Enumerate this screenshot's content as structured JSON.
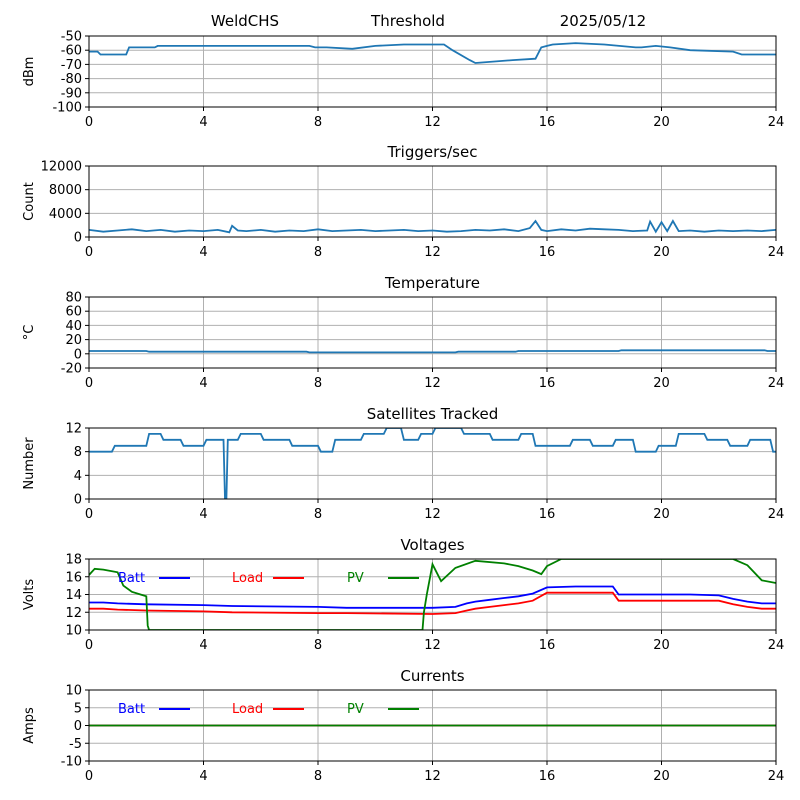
{
  "header": {
    "left": "WeldCHS",
    "center": "Threshold",
    "right": "2025/05/12"
  },
  "colors": {
    "series": "#1f77b4",
    "grid": "#b0b0b0",
    "batt": "#0000ff",
    "load": "#ff0000",
    "pv": "#008000"
  },
  "chart_data": [
    {
      "type": "line",
      "title": "",
      "ylabel": "dBm",
      "xlim": [
        0,
        24
      ],
      "ylim": [
        -100,
        -50
      ],
      "xticks": [
        "0",
        "4",
        "8",
        "12",
        "16",
        "20",
        "24"
      ],
      "yticks": [
        "-50",
        "-60",
        "-70",
        "-80",
        "-90",
        "-100"
      ],
      "grid": true,
      "series": [
        {
          "x": [
            0,
            0.3,
            0.4,
            1.3,
            1.4,
            2.3,
            2.4,
            3,
            7.7,
            7.9,
            8.3,
            9.2,
            10,
            11,
            12.4,
            12.7,
            13.3,
            13.5,
            14.8,
            15.6,
            15.8,
            16,
            16.2,
            17,
            18,
            19.1,
            19.3,
            19.8,
            20.3,
            21,
            22.5,
            22.8,
            24
          ],
          "y": [
            -61,
            -61,
            -63,
            -63,
            -58,
            -58,
            -57,
            -57,
            -57,
            -58,
            -58,
            -59,
            -57,
            -56,
            -56,
            -60,
            -67,
            -69,
            -67,
            -66,
            -58,
            -57,
            -56,
            -55,
            -56,
            -58,
            -58,
            -57,
            -58,
            -60,
            -61,
            -63,
            -63
          ]
        }
      ]
    },
    {
      "type": "line",
      "title": "Triggers/sec",
      "ylabel": "Count",
      "xlim": [
        0,
        24
      ],
      "ylim": [
        0,
        12000
      ],
      "xticks": [
        "0",
        "4",
        "8",
        "12",
        "16",
        "20",
        "24"
      ],
      "yticks": [
        "0",
        "4000",
        "8000",
        "12000"
      ],
      "grid": true,
      "series": [
        {
          "x": [
            0,
            0.5,
            1,
            1.5,
            2,
            2.5,
            3,
            3.5,
            4,
            4.5,
            4.9,
            5,
            5.2,
            5.5,
            6,
            6.5,
            7,
            7.5,
            8,
            8.5,
            9,
            9.5,
            10,
            10.5,
            11,
            11.5,
            12,
            12.5,
            13,
            13.5,
            14,
            14.5,
            15,
            15.4,
            15.6,
            15.8,
            16,
            16.5,
            17,
            17.5,
            18,
            18.5,
            19,
            19.5,
            19.6,
            19.8,
            20,
            20.2,
            20.4,
            20.6,
            21,
            21.5,
            22,
            22.5,
            23,
            23.5,
            24
          ],
          "y": [
            1200,
            900,
            1100,
            1300,
            1000,
            1200,
            900,
            1100,
            1000,
            1200,
            800,
            1900,
            1100,
            1000,
            1200,
            900,
            1100,
            1000,
            1300,
            1000,
            1100,
            1200,
            1000,
            1100,
            1200,
            1000,
            1100,
            900,
            1000,
            1200,
            1100,
            1300,
            1000,
            1500,
            2700,
            1200,
            1000,
            1300,
            1100,
            1400,
            1300,
            1200,
            1000,
            1100,
            2600,
            900,
            2500,
            1000,
            2700,
            1000,
            1100,
            900,
            1100,
            1000,
            1100,
            1000,
            1200
          ]
        }
      ]
    },
    {
      "type": "line",
      "title": "Temperature",
      "ylabel": "°C",
      "xlim": [
        0,
        24
      ],
      "ylim": [
        -20,
        80
      ],
      "xticks": [
        "0",
        "4",
        "8",
        "12",
        "16",
        "20",
        "24"
      ],
      "yticks": [
        "80",
        "60",
        "40",
        "20",
        "0",
        "-20"
      ],
      "grid": true,
      "series": [
        {
          "x": [
            0,
            2,
            2.1,
            7.6,
            7.7,
            12.8,
            12.9,
            14.9,
            15,
            18.5,
            18.6,
            23.6,
            23.7,
            24
          ],
          "y": [
            4,
            4,
            3,
            3,
            2,
            2,
            3,
            3,
            4,
            4,
            5,
            5,
            4,
            4
          ]
        }
      ]
    },
    {
      "type": "line",
      "title": "Satellites Tracked",
      "ylabel": "Number",
      "xlim": [
        0,
        24
      ],
      "ylim": [
        0,
        12
      ],
      "xticks": [
        "0",
        "4",
        "8",
        "12",
        "16",
        "20",
        "24"
      ],
      "yticks": [
        "12",
        "8",
        "4",
        "0"
      ],
      "grid": true,
      "series": [
        {
          "x": [
            0,
            0.8,
            0.9,
            2,
            2.1,
            2.5,
            2.6,
            3.2,
            3.3,
            4,
            4.1,
            4.7,
            4.75,
            4.8,
            4.85,
            5.2,
            5.3,
            6,
            6.1,
            7,
            7.1,
            8,
            8.1,
            8.5,
            8.6,
            9.5,
            9.6,
            10.3,
            10.4,
            10.9,
            11,
            11.5,
            11.6,
            12,
            12.1,
            13,
            13.1,
            14,
            14.1,
            15,
            15.1,
            15.5,
            15.6,
            16.8,
            16.9,
            17.5,
            17.6,
            18.3,
            18.4,
            19,
            19.1,
            19.8,
            19.9,
            20.5,
            20.6,
            21.5,
            21.6,
            22.3,
            22.4,
            23,
            23.1,
            23.8,
            23.9,
            24
          ],
          "y": [
            8,
            8,
            9,
            9,
            11,
            11,
            10,
            10,
            9,
            9,
            10,
            10,
            0,
            0,
            10,
            10,
            11,
            11,
            10,
            10,
            9,
            9,
            8,
            8,
            10,
            10,
            11,
            11,
            12,
            12,
            10,
            10,
            11,
            11,
            12,
            12,
            11,
            11,
            10,
            10,
            11,
            11,
            9,
            9,
            10,
            10,
            9,
            9,
            10,
            10,
            8,
            8,
            9,
            9,
            11,
            11,
            10,
            10,
            9,
            9,
            10,
            10,
            8,
            8
          ]
        }
      ]
    },
    {
      "type": "line",
      "title": "Voltages",
      "ylabel": "Volts",
      "xlim": [
        0,
        24
      ],
      "ylim": [
        10,
        18
      ],
      "xticks": [
        "0",
        "4",
        "8",
        "12",
        "16",
        "20",
        "24"
      ],
      "yticks": [
        "18",
        "16",
        "14",
        "12",
        "10"
      ],
      "grid": true,
      "legend": "top-left",
      "series": [
        {
          "name": "Batt",
          "x": [
            0,
            0.5,
            1,
            2,
            4,
            5,
            8,
            9,
            12,
            12.8,
            13.2,
            13.5,
            14,
            14.5,
            15,
            15.5,
            16,
            17,
            18.3,
            18.5,
            19,
            21,
            22,
            22.5,
            23,
            23.5,
            24
          ],
          "y": [
            13.1,
            13.1,
            13.0,
            12.9,
            12.8,
            12.7,
            12.6,
            12.5,
            12.5,
            12.6,
            13.0,
            13.2,
            13.4,
            13.6,
            13.8,
            14.1,
            14.8,
            14.9,
            14.9,
            14.0,
            14.0,
            14.0,
            13.9,
            13.5,
            13.2,
            13.0,
            13.0
          ]
        },
        {
          "name": "Load",
          "x": [
            0,
            0.5,
            1,
            2,
            4,
            5,
            8,
            9,
            12,
            12.8,
            13.2,
            13.5,
            14,
            14.5,
            15,
            15.5,
            16,
            17,
            18.3,
            18.5,
            19,
            21,
            22,
            22.5,
            23,
            23.5,
            24
          ],
          "y": [
            12.4,
            12.4,
            12.3,
            12.2,
            12.1,
            12.0,
            11.9,
            11.9,
            11.8,
            11.9,
            12.2,
            12.4,
            12.6,
            12.8,
            13.0,
            13.3,
            14.2,
            14.2,
            14.2,
            13.3,
            13.3,
            13.3,
            13.3,
            12.9,
            12.6,
            12.4,
            12.4
          ]
        },
        {
          "name": "PV",
          "x": [
            0,
            0.2,
            0.5,
            1,
            1.2,
            1.5,
            1.8,
            2,
            2.05,
            2.1,
            11.65,
            11.7,
            11.8,
            12,
            12.3,
            12.8,
            13.5,
            14.5,
            15,
            15.5,
            15.8,
            16,
            16.5,
            22.5,
            23,
            23.5,
            24
          ],
          "y": [
            16.2,
            16.9,
            16.8,
            16.5,
            15.0,
            14.3,
            14.0,
            13.8,
            10.5,
            10,
            10,
            12,
            14,
            17.4,
            15.5,
            17.0,
            17.8,
            17.5,
            17.2,
            16.7,
            16.3,
            17.2,
            18,
            18,
            17.3,
            15.6,
            15.3
          ]
        }
      ]
    },
    {
      "type": "line",
      "title": "Currents",
      "ylabel": "Amps",
      "xlim": [
        0,
        24
      ],
      "ylim": [
        -10,
        10
      ],
      "xticks": [
        "0",
        "4",
        "8",
        "12",
        "16",
        "20",
        "24"
      ],
      "yticks": [
        "10",
        "5",
        "0",
        "-5",
        "-10"
      ],
      "grid": true,
      "legend": "top-left",
      "series": [
        {
          "name": "Batt",
          "x": [
            0,
            24
          ],
          "y": [
            0,
            0
          ]
        },
        {
          "name": "Load",
          "x": [
            0,
            24
          ],
          "y": [
            0,
            0
          ]
        },
        {
          "name": "PV",
          "x": [
            0,
            24
          ],
          "y": [
            0,
            0
          ]
        }
      ]
    }
  ]
}
